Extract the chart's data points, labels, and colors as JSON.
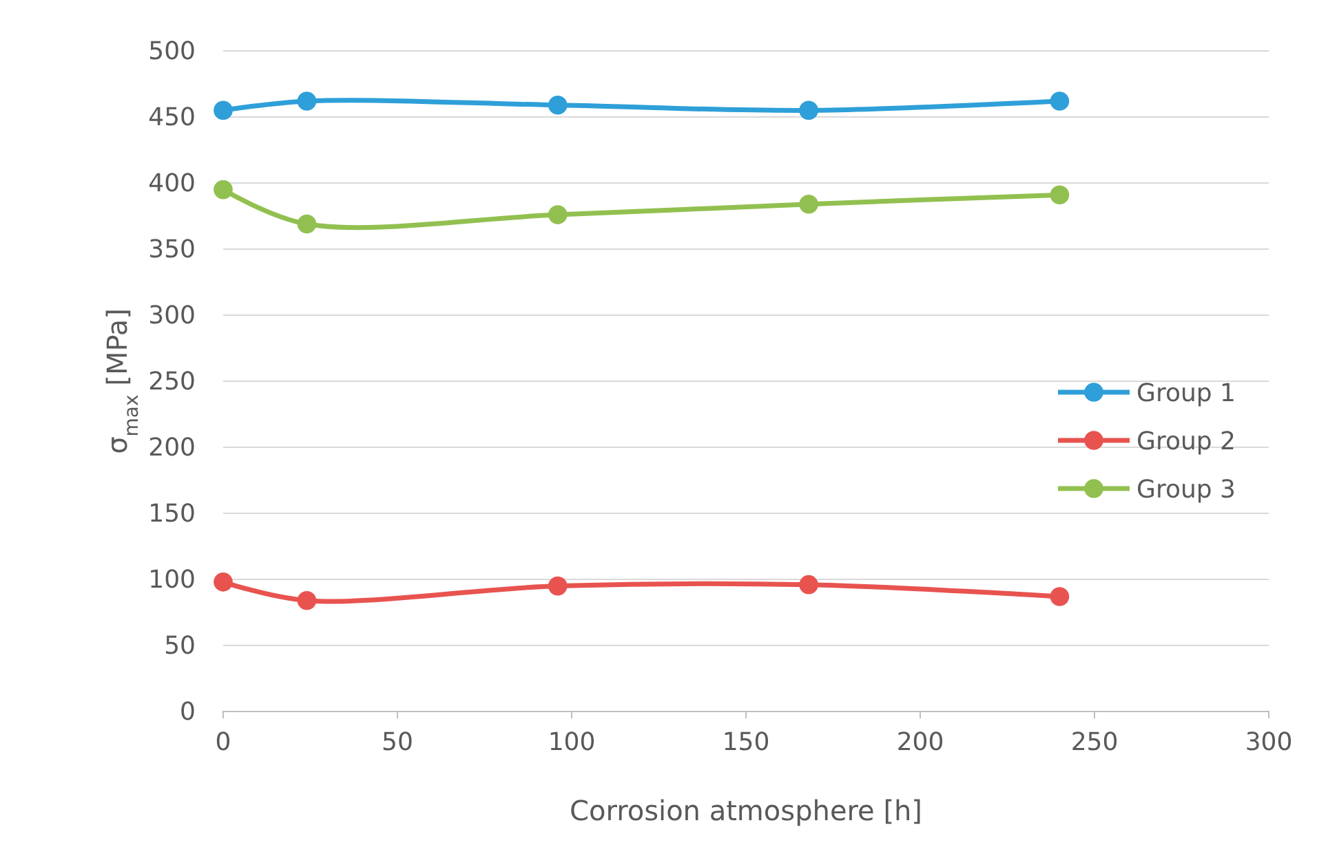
{
  "chart_data": {
    "type": "line",
    "xlabel": "Corrosion atmosphere [h]",
    "ylabel": "σ$_{max}$ [MPa]",
    "x": [
      0,
      24,
      96,
      168,
      240
    ],
    "series": [
      {
        "name": "Group 1",
        "color": "#2e9fd8",
        "values": [
          455,
          462,
          459,
          455,
          462
        ]
      },
      {
        "name": "Group 2",
        "color": "#e8534f",
        "values": [
          98,
          84,
          95,
          96,
          87
        ]
      },
      {
        "name": "Group 3",
        "color": "#92c050",
        "values": [
          395,
          369,
          376,
          384,
          391
        ]
      }
    ],
    "xlim": [
      0,
      300
    ],
    "xticks": [
      0,
      50,
      100,
      150,
      200,
      250,
      300
    ],
    "ylim": [
      0,
      500
    ],
    "yticks": [
      0,
      50,
      100,
      150,
      200,
      250,
      300,
      350,
      400,
      450,
      500
    ],
    "grid": "y",
    "legend": "right",
    "marker": "circle",
    "line_style": "solid"
  }
}
